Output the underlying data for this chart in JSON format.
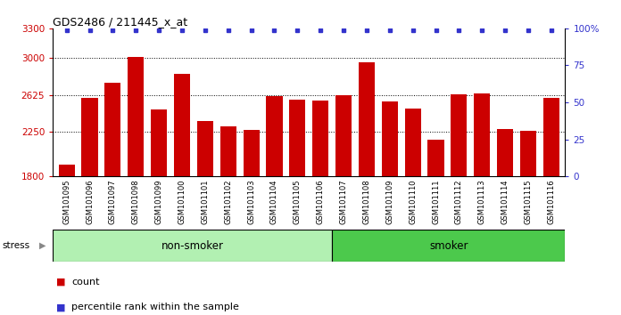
{
  "title": "GDS2486 / 211445_x_at",
  "categories": [
    "GSM101095",
    "GSM101096",
    "GSM101097",
    "GSM101098",
    "GSM101099",
    "GSM101100",
    "GSM101101",
    "GSM101102",
    "GSM101103",
    "GSM101104",
    "GSM101105",
    "GSM101106",
    "GSM101107",
    "GSM101108",
    "GSM101109",
    "GSM101110",
    "GSM101111",
    "GSM101112",
    "GSM101113",
    "GSM101114",
    "GSM101115",
    "GSM101116"
  ],
  "bar_values": [
    1920,
    2600,
    2750,
    3010,
    2480,
    2840,
    2360,
    2310,
    2270,
    2615,
    2580,
    2570,
    2620,
    2960,
    2560,
    2490,
    2170,
    2630,
    2640,
    2280,
    2260,
    2600
  ],
  "bar_color": "#cc0000",
  "percentile_color": "#3333cc",
  "ylim_left": [
    1800,
    3300
  ],
  "ylim_right": [
    0,
    100
  ],
  "yticks_left": [
    1800,
    2250,
    2625,
    3000,
    3300
  ],
  "yticks_right": [
    0,
    25,
    50,
    75,
    100
  ],
  "ytick_labels_left": [
    "1800",
    "2250",
    "2625",
    "3000",
    "3300"
  ],
  "ytick_labels_right": [
    "0",
    "25",
    "50",
    "75",
    "100%"
  ],
  "non_smoker_color": "#b2f0b2",
  "smoker_color": "#4cc94c",
  "stress_label": "stress",
  "legend_count_label": "count",
  "legend_percentile_label": "percentile rank within the sample",
  "bar_width": 0.7,
  "n_non_smoker": 12,
  "n_smoker": 10
}
